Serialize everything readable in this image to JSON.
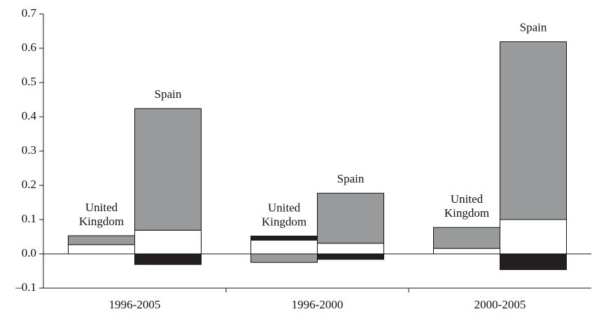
{
  "chart_data": {
    "type": "bar",
    "ylim": [
      -0.1,
      0.7
    ],
    "yticks": [
      {
        "value": -0.1,
        "label": "–0.1"
      },
      {
        "value": 0,
        "label": "0.0"
      },
      0.1,
      0.2,
      0.3,
      0.4,
      0.5,
      0.6,
      0.7
    ],
    "colors": [
      "#ffffff",
      "#999a9c",
      "#231f20"
    ],
    "groups": [
      {
        "category": "1996-2005",
        "bars": [
          {
            "label": [
              "United",
              "Kingdom"
            ],
            "values": [
              0.027,
              0.026,
              0
            ]
          },
          {
            "label": [
              "Spain"
            ],
            "values": [
              0.069,
              0.355,
              -0.031
            ]
          }
        ]
      },
      {
        "category": "1996-2000",
        "bars": [
          {
            "label": [
              "United",
              "Kingdom"
            ],
            "values": [
              0.04,
              -0.025,
              0.012
            ]
          },
          {
            "label": [
              "Spain"
            ],
            "values": [
              0.031,
              0.146,
              -0.016
            ]
          }
        ]
      },
      {
        "category": "2000-2005",
        "bars": [
          {
            "label": [
              "United",
              "Kingdom"
            ],
            "values": [
              0.016,
              0.061,
              0
            ]
          },
          {
            "label": [
              "Spain"
            ],
            "values": [
              0.1,
              0.519,
              -0.046
            ]
          }
        ]
      }
    ]
  }
}
